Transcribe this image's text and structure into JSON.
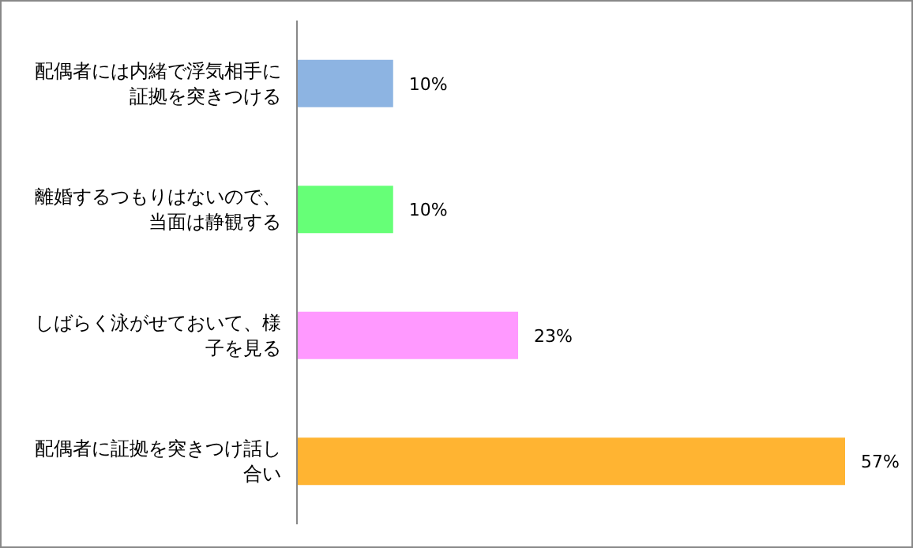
{
  "chart_data": {
    "type": "bar",
    "orientation": "horizontal",
    "categories": [
      "配偶者には内緒で浮気相手に証拠を突きつける",
      "離婚するつもりはないので、当面は静観する",
      "しばらく泳がせておいて、様子を見る",
      "配偶者に証拠を突きつけ話し合い"
    ],
    "values": [
      10,
      10,
      23,
      57
    ],
    "colors": [
      "#8db4e2",
      "#66ff77",
      "#ff99ff",
      "#ffb432"
    ],
    "value_labels": [
      "10%",
      "10%",
      "23%",
      "57%"
    ]
  }
}
